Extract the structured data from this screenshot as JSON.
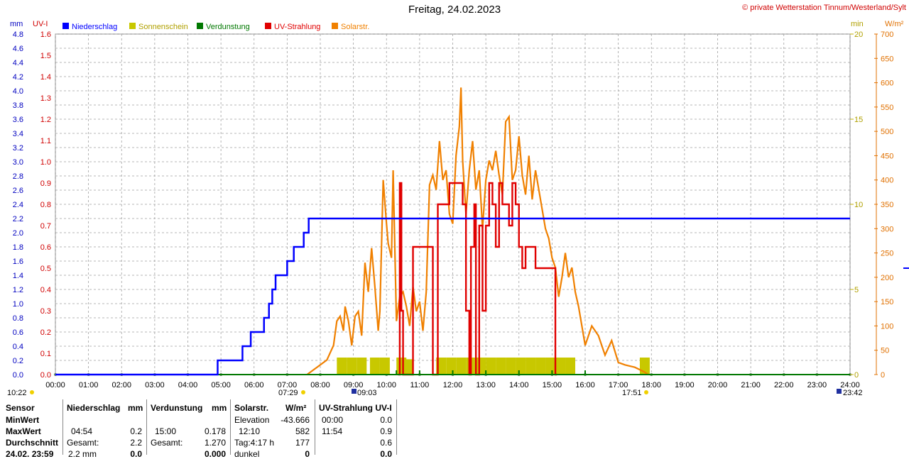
{
  "header": {
    "title": "Freitag, 24.02.2023",
    "credit": "© private Wetterstation Tinnum/Westerland/Sylt"
  },
  "legend": [
    {
      "name": "Niederschlag",
      "color": "#0000ff"
    },
    {
      "name": "Sonnenschein",
      "color": "#c8c800"
    },
    {
      "name": "Verdunstung",
      "color": "#007800"
    },
    {
      "name": "UV-Strahlung",
      "color": "#e00000"
    },
    {
      "name": "Solarstr.",
      "color": "#f08000"
    }
  ],
  "axis_units": {
    "left1": "mm",
    "left2": "UV-I",
    "right1": "min",
    "right2": "W/m²"
  },
  "chart_data": {
    "type": "line",
    "title": "Freitag, 24.02.2023",
    "x_ticks": [
      "00:00",
      "01:00",
      "02:00",
      "03:00",
      "04:00",
      "05:00",
      "06:00",
      "07:00",
      "08:00",
      "09:00",
      "10:00",
      "11:00",
      "12:00",
      "13:00",
      "14:00",
      "15:00",
      "16:00",
      "17:00",
      "18:00",
      "19:00",
      "20:00",
      "21:00",
      "22:00",
      "23:00",
      "24:00"
    ],
    "axes": {
      "mm": {
        "range": [
          0,
          4.8
        ],
        "ticks": [
          "0.0",
          "0.2",
          "0.4",
          "0.6",
          "0.8",
          "1.0",
          "1.2",
          "1.4",
          "1.6",
          "1.8",
          "2.0",
          "2.2",
          "2.4",
          "2.6",
          "2.8",
          "3.0",
          "3.2",
          "3.4",
          "3.6",
          "3.8",
          "4.0",
          "4.2",
          "4.4",
          "4.6",
          "4.8"
        ]
      },
      "uv": {
        "range": [
          0,
          1.6
        ],
        "ticks": [
          "0.0",
          "0.1",
          "0.2",
          "0.3",
          "0.4",
          "0.5",
          "0.6",
          "0.7",
          "0.8",
          "0.9",
          "1.0",
          "1.1",
          "1.2",
          "1.3",
          "1.4",
          "1.5",
          "1.6"
        ]
      },
      "min": {
        "range": [
          0,
          20
        ],
        "ticks": [
          "0",
          "5",
          "10",
          "15",
          "20"
        ]
      },
      "wm2": {
        "range": [
          0,
          700
        ],
        "ticks": [
          "0",
          "50",
          "100",
          "150",
          "200",
          "250",
          "300",
          "350",
          "400",
          "450",
          "500",
          "550",
          "600",
          "650",
          "700"
        ]
      }
    },
    "grid": true,
    "series": [
      {
        "name": "Niederschlag",
        "axis": "mm",
        "step": true,
        "x": [
          0,
          4.9,
          5.65,
          5.9,
          6.3,
          6.45,
          6.55,
          6.65,
          7.0,
          7.2,
          7.5,
          7.65,
          8.0,
          8.3,
          8.8,
          24
        ],
        "y": [
          0.0,
          0.2,
          0.4,
          0.6,
          0.8,
          1.0,
          1.2,
          1.4,
          1.6,
          1.8,
          2.0,
          2.2,
          2.2,
          2.2,
          2.2,
          2.2
        ]
      },
      {
        "name": "Solarstr.",
        "axis": "wm2",
        "x": [
          7.6,
          7.9,
          8.2,
          8.4,
          8.5,
          8.6,
          8.7,
          8.75,
          8.85,
          8.95,
          9.05,
          9.15,
          9.25,
          9.35,
          9.45,
          9.55,
          9.65,
          9.75,
          9.8,
          9.9,
          10.0,
          10.05,
          10.15,
          10.2,
          10.3,
          10.4,
          10.5,
          10.6,
          10.7,
          10.8,
          10.9,
          11.0,
          11.1,
          11.2,
          11.3,
          11.4,
          11.5,
          11.6,
          11.7,
          11.8,
          11.9,
          12.0,
          12.1,
          12.2,
          12.25,
          12.3,
          12.4,
          12.5,
          12.6,
          12.7,
          12.8,
          12.9,
          13.0,
          13.1,
          13.2,
          13.3,
          13.4,
          13.5,
          13.6,
          13.7,
          13.8,
          13.9,
          14.0,
          14.1,
          14.2,
          14.3,
          14.4,
          14.5,
          14.6,
          14.7,
          14.8,
          14.9,
          15.0,
          15.1,
          15.2,
          15.3,
          15.4,
          15.5,
          15.6,
          15.7,
          15.8,
          16.0,
          16.2,
          16.4,
          16.6,
          16.8,
          17.0,
          17.2,
          17.5,
          17.8,
          17.9
        ],
        "y": [
          0,
          15,
          30,
          60,
          110,
          120,
          90,
          140,
          110,
          60,
          120,
          130,
          80,
          230,
          170,
          260,
          180,
          90,
          130,
          400,
          310,
          270,
          240,
          420,
          110,
          160,
          170,
          140,
          100,
          180,
          130,
          150,
          90,
          170,
          390,
          410,
          380,
          480,
          400,
          420,
          330,
          310,
          450,
          510,
          590,
          440,
          330,
          420,
          480,
          380,
          420,
          300,
          400,
          440,
          420,
          460,
          410,
          370,
          520,
          530,
          400,
          420,
          490,
          410,
          370,
          450,
          360,
          420,
          380,
          340,
          300,
          280,
          240,
          220,
          160,
          200,
          250,
          200,
          220,
          170,
          140,
          60,
          100,
          80,
          40,
          70,
          25,
          20,
          15,
          5,
          0
        ]
      },
      {
        "name": "UV-Strahlung",
        "axis": "uv",
        "x": [
          10.35,
          10.4,
          10.45,
          10.5,
          10.8,
          11.35,
          11.4,
          11.55,
          11.6,
          11.9,
          12.0,
          12.3,
          12.4,
          12.5,
          12.55,
          12.65,
          12.7,
          12.8,
          12.9,
          13.0,
          13.1,
          13.2,
          13.3,
          13.4,
          13.5,
          13.6,
          13.7,
          13.8,
          13.9,
          14.0,
          14.1,
          14.2,
          14.3,
          14.5,
          14.8,
          15.0,
          15.1,
          15.15
        ],
        "y": [
          0,
          0.9,
          0.3,
          0,
          0.6,
          0.6,
          0,
          0.8,
          0.8,
          0.9,
          0.9,
          0.8,
          0.3,
          0,
          0.6,
          0.8,
          0,
          0.7,
          0.3,
          0.7,
          0.9,
          0.8,
          0.6,
          0.9,
          0.8,
          0.8,
          0.7,
          0.9,
          0.8,
          0.6,
          0.5,
          0.6,
          0.6,
          0.5,
          0.5,
          0.5,
          0,
          0
        ]
      },
      {
        "name": "Sonnenschein",
        "axis": "min",
        "bars": true,
        "x": [
          8.5,
          8.8,
          9.1,
          9.5,
          9.8,
          10.3,
          10.5,
          11.5,
          11.8,
          12.1,
          12.4,
          12.7,
          13.0,
          13.3,
          13.6,
          13.9,
          14.2,
          14.5,
          14.8,
          15.1,
          15.4,
          17.65
        ],
        "y": [
          1,
          1,
          1,
          1,
          1,
          1,
          0.9,
          1,
          1,
          1,
          1,
          1,
          1,
          1,
          1,
          1,
          1,
          1,
          1,
          1,
          1,
          1
        ]
      },
      {
        "name": "Verdunstung",
        "axis": "mm",
        "x": [
          0,
          24
        ],
        "y": [
          0,
          0
        ]
      }
    ]
  },
  "time_markers": {
    "left": "10:22",
    "sunrise": "07:29",
    "uv_marker": "09:03",
    "sunset": "17:51",
    "right": "23:42"
  },
  "table": {
    "row_labels": [
      "Sensor",
      "MinWert",
      "MaxWert",
      "Durchschnitt",
      "24.02. 23:59"
    ],
    "niederschlag": {
      "header": "Niederschlag",
      "unit": "mm",
      "max_time": "04:54",
      "max": "0.2",
      "avg_label": "Gesamt:",
      "avg": "2.2",
      "last_label": "2.2 mm",
      "last": "0.0"
    },
    "verdunstung": {
      "header": "Verdunstung",
      "unit": "mm",
      "max_time": "15:00",
      "max": "0.178",
      "avg_label": "Gesamt:",
      "avg": "1.270",
      "last": "0.000"
    },
    "solar": {
      "header": "Solarstr.",
      "unit": "W/m²",
      "min_label": "Elevation",
      "min": "-43.666",
      "max_time": "12:10",
      "max": "582",
      "avg_label": "Tag:4:17 h",
      "avg": "177",
      "last_label": "dunkel",
      "last": "0"
    },
    "uv": {
      "header": "UV-Strahlung UV-I",
      "min_time": "00:00",
      "min": "0.0",
      "max_time": "11:54",
      "max": "0.9",
      "avg": "0.6",
      "last": "0.0"
    }
  }
}
